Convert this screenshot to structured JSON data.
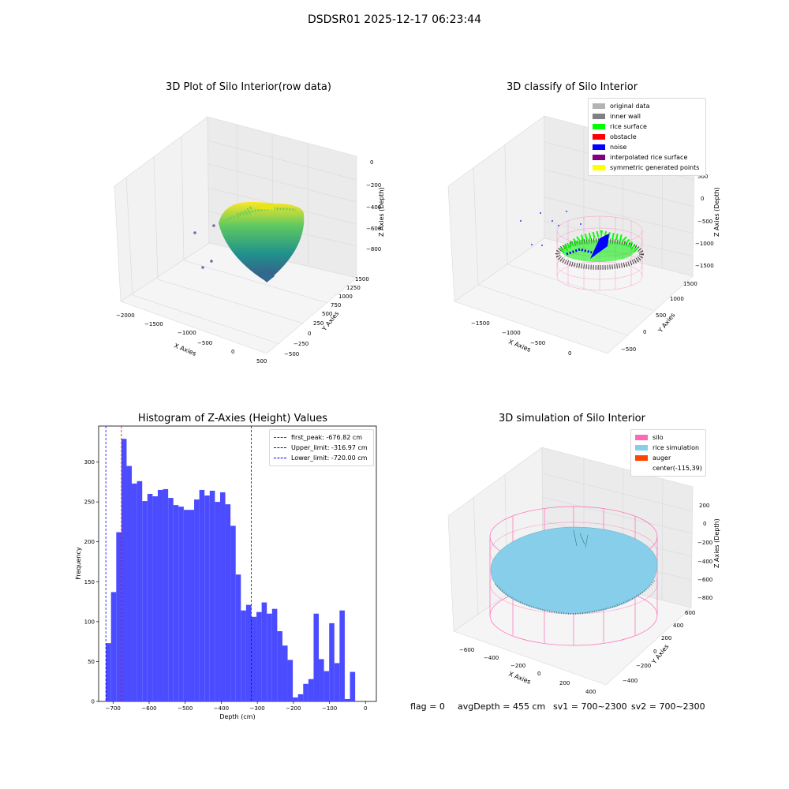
{
  "suptitle": "DSDSR01 2025-12-17 06:23:44",
  "footer": {
    "flag": "flag = 0",
    "avg_depth": "avgDepth = 455 cm",
    "sv1": "sv1 = 700~2300",
    "sv2": "sv2 = 700~2300"
  },
  "colors": {
    "histogram_bars": "#4b4bff",
    "first_peak": "#ff0000",
    "limits": "#0000ff",
    "silo": "#ff69b4",
    "rice_simulation": "#87ceeb",
    "auger": "#ff4500",
    "original_data": "#b3b3b3",
    "inner_wall": "#808080",
    "rice_surface": "#00ff00",
    "obstacle": "#ff0000",
    "noise": "#0000ff",
    "interpolated_rice_surface": "#800080",
    "symmetric_generated_points": "#ffff00"
  },
  "chart_data": [
    {
      "type": "scatter3d",
      "title": "3D Plot of Silo Interior(row data)",
      "xlabel": "X Axies",
      "ylabel": "Y Axies",
      "zlabel": "Z Axies (Depth)",
      "xticks": [
        "−2000",
        "−1500",
        "−1000",
        "−500",
        "0",
        "500"
      ],
      "yticks": [
        "−500",
        "−250",
        "0",
        "250",
        "500",
        "750",
        "1000",
        "1250",
        "1500"
      ],
      "zticks": [
        "0",
        "−200",
        "−400",
        "−600",
        "−800"
      ],
      "colormap": "viridis"
    },
    {
      "type": "scatter3d",
      "title": "3D classify of Silo Interior",
      "zlabel": "Z Axies (Depth)",
      "xlabel": "X Axies",
      "ylabel": "Y Axies",
      "xticks": [
        "−1500",
        "−1000",
        "−500",
        "0"
      ],
      "yticks": [
        "−500",
        "0",
        "500",
        "1000",
        "1500"
      ],
      "zticks": [
        "500",
        "0",
        "−500",
        "−1000",
        "−1500"
      ],
      "legend": [
        "original data",
        "inner wall",
        "rice surface",
        "obstacle",
        "noise",
        "interpolated rice surface",
        "symmetric generated points"
      ],
      "legend_placement": "top-right"
    },
    {
      "type": "bar",
      "title": "Histogram of Z-Axies (Height) Values",
      "xlabel": "Depth (cm)",
      "ylabel": "Frequency",
      "xlim": [
        -740,
        30
      ],
      "ylim": [
        0,
        345
      ],
      "xticks": [
        -700,
        -600,
        -500,
        -400,
        -300,
        -200,
        -100,
        0
      ],
      "xtick_labels": [
        "−700",
        "−600",
        "−500",
        "−400",
        "−300",
        "−200",
        "−100",
        "0"
      ],
      "yticks": [
        0,
        50,
        100,
        150,
        200,
        250,
        300
      ],
      "bin_start": -720,
      "bin_width": 14.4,
      "values": [
        73,
        137,
        212,
        329,
        295,
        273,
        276,
        251,
        260,
        257,
        265,
        266,
        255,
        246,
        244,
        240,
        240,
        253,
        265,
        258,
        264,
        250,
        262,
        247,
        220,
        159,
        114,
        121,
        106,
        112,
        124,
        110,
        116,
        88,
        70,
        52,
        5,
        9,
        22,
        28,
        110,
        53,
        38,
        98,
        48,
        114,
        3,
        37
      ],
      "vlines": [
        {
          "label": "first_peak: -676.82 cm",
          "x": -676.82,
          "color": "#ff0000"
        },
        {
          "label": "Upper_limit: -316.97 cm",
          "x": -316.97,
          "color": "#0000ff"
        },
        {
          "label": "Lower_limit: -720.00 cm",
          "x": -720.0,
          "color": "#0000ff"
        }
      ],
      "legend_placement": "top-right"
    },
    {
      "type": "surface3d",
      "title": "3D simulation of Silo Interior",
      "xlabel": "X Axies",
      "ylabel": "Y Axies",
      "zlabel": "Z Axies (Depth)",
      "xticks": [
        "−600",
        "−400",
        "−200",
        "0",
        "200",
        "400"
      ],
      "yticks": [
        "−400",
        "−200",
        "0",
        "200",
        "400",
        "600"
      ],
      "zticks": [
        "200",
        "0",
        "−200",
        "−400",
        "−600",
        "−800"
      ],
      "legend": [
        "silo",
        "rice simulation",
        "auger",
        "center(-115,39)"
      ],
      "legend_placement": "top-right"
    }
  ]
}
